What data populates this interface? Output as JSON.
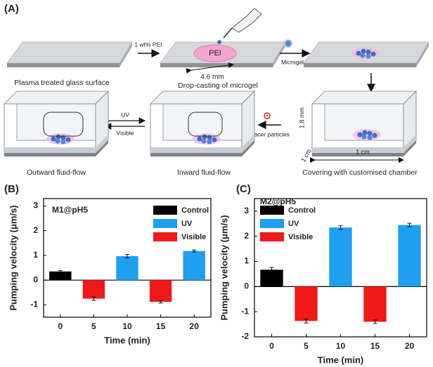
{
  "diagram": {
    "label": "(A)",
    "step1": "Plasma treated glass surface",
    "arrow1": "1 wt% PEI",
    "pei": "PEI",
    "size": "4.6 mm",
    "step2": "Drop-casting of microgel",
    "arrow2": "Microgel",
    "step3": "Covering with customised chamber",
    "height": "1.8 mm",
    "depth": "1 cm",
    "width": "1 cm",
    "arrow3": "Tracer particles",
    "uv": "UV",
    "visible": "Visible",
    "step4": "Inward fluid-flow",
    "step5": "Outward fluid-flow"
  },
  "chart_data": [
    {
      "type": "bar",
      "panel_label": "(B)",
      "annotation": "M1@pH5",
      "ylabel": "Pumping velocity (μm/s)",
      "xlabel": "Time (min)",
      "categories": [
        "0",
        "5",
        "10",
        "15",
        "20"
      ],
      "series": [
        {
          "name": "Control",
          "color": "#000000",
          "values": [
            0.35,
            null,
            null,
            null,
            null
          ],
          "errors": [
            0.04,
            null,
            null,
            null,
            null
          ]
        },
        {
          "name": "UV",
          "color": "#1e9ff0",
          "values": [
            null,
            null,
            0.97,
            null,
            1.18
          ],
          "errors": [
            null,
            null,
            0.07,
            null,
            0.04
          ]
        },
        {
          "name": "Visible",
          "color": "#f01818",
          "values": [
            null,
            -0.75,
            null,
            -0.88,
            null
          ],
          "errors": [
            null,
            0.07,
            null,
            0.05,
            null
          ]
        }
      ],
      "ylim": [
        -1.5,
        3.3
      ],
      "yticks": [
        -1,
        0,
        1,
        2,
        3
      ],
      "legend": "upper right"
    },
    {
      "type": "bar",
      "panel_label": "(C)",
      "annotation": "M2@pH5",
      "ylabel": "Pumping velocity (μm/s)",
      "xlabel": "Time (min)",
      "categories": [
        "0",
        "5",
        "10",
        "15",
        "20"
      ],
      "series": [
        {
          "name": "Control",
          "color": "#000000",
          "values": [
            0.67,
            null,
            null,
            null,
            null
          ],
          "errors": [
            0.09,
            null,
            null,
            null,
            null
          ]
        },
        {
          "name": "UV",
          "color": "#1e9ff0",
          "values": [
            null,
            null,
            2.35,
            null,
            2.45
          ],
          "errors": [
            null,
            null,
            0.07,
            null,
            0.07
          ]
        },
        {
          "name": "Visible",
          "color": "#f01818",
          "values": [
            null,
            -1.37,
            null,
            -1.4,
            null
          ],
          "errors": [
            null,
            0.08,
            null,
            0.07,
            null
          ]
        }
      ],
      "ylim": [
        -2,
        3.5
      ],
      "yticks": [
        -2,
        -1,
        0,
        1,
        2,
        3
      ],
      "legend": "upper left"
    }
  ]
}
